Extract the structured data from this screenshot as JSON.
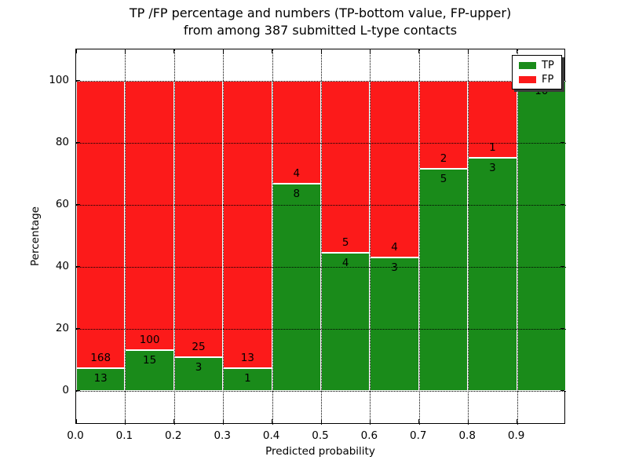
{
  "title": {
    "line1": "TP /FP percentage and numbers (TP-bottom value, FP-upper)",
    "line2": "from among 387 submitted L-type contacts"
  },
  "chart_data": {
    "type": "bar",
    "stacked": true,
    "normalized_to_percent": true,
    "title": "TP /FP percentage and numbers (TP-bottom value, FP-upper) from among 387 submitted L-type contacts",
    "xlabel": "Predicted probability",
    "ylabel": "Percentage",
    "xlim": [
      0.0,
      1.0
    ],
    "ylim": [
      -11,
      110
    ],
    "grid": true,
    "x_tick_labels": [
      "0.0",
      "0.1",
      "0.2",
      "0.3",
      "0.4",
      "0.5",
      "0.6",
      "0.7",
      "0.8",
      "0.9"
    ],
    "y_tick_values": [
      0,
      20,
      40,
      60,
      80,
      100
    ],
    "bin_edges": [
      0.0,
      0.1,
      0.2,
      0.3,
      0.4,
      0.5,
      0.6,
      0.7,
      0.8,
      0.9,
      1.0
    ],
    "series": [
      {
        "name": "TP",
        "color": "#1a8b1a",
        "values": [
          13,
          15,
          3,
          1,
          8,
          4,
          3,
          5,
          3,
          10
        ]
      },
      {
        "name": "FP",
        "color": "#fc1a1a",
        "values": [
          168,
          100,
          25,
          13,
          4,
          5,
          4,
          2,
          1,
          0
        ]
      }
    ],
    "tp_percent": [
      7.2,
      13.0,
      10.7,
      7.1,
      66.7,
      44.4,
      42.9,
      71.4,
      75.0,
      100.0
    ],
    "legend": {
      "position": "upper right",
      "items": [
        {
          "label": "TP",
          "color": "#1a8b1a"
        },
        {
          "label": "FP",
          "color": "#fc1a1a"
        }
      ]
    }
  }
}
